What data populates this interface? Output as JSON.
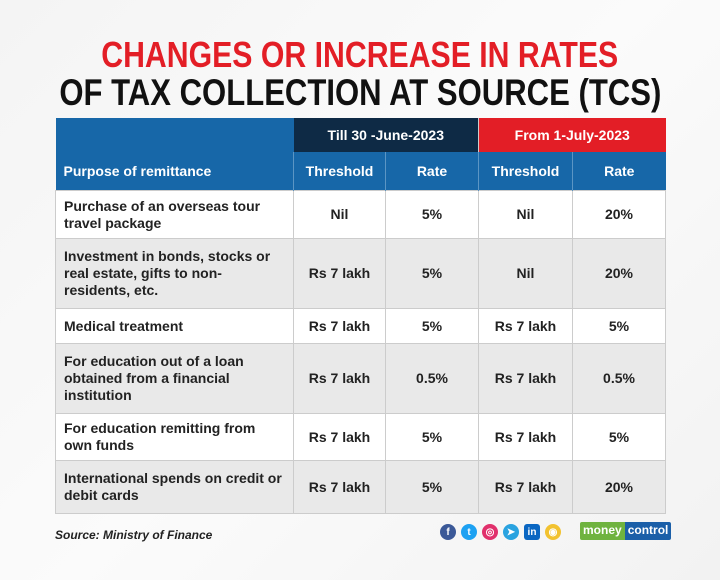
{
  "title": {
    "line1": "CHANGES OR INCREASE IN RATES",
    "line2": "OF TAX COLLECTION AT SOURCE (TCS)"
  },
  "table": {
    "period_headers": [
      "Till 30 -June-2023",
      "From 1-July-2023"
    ],
    "columns": [
      "Purpose of remittance",
      "Threshold",
      "Rate",
      "Threshold",
      "Rate"
    ],
    "rows": [
      [
        "Purchase of an overseas tour travel package",
        "Nil",
        "5%",
        "Nil",
        "20%"
      ],
      [
        "Investment in bonds, stocks or real estate, gifts to non-residents, etc.",
        "Rs 7 lakh",
        "5%",
        "Nil",
        "20%"
      ],
      [
        "Medical treatment",
        "Rs 7 lakh",
        "5%",
        "Rs 7 lakh",
        "5%"
      ],
      [
        "For education out of a loan obtained from a financial institution",
        "Rs 7 lakh",
        "0.5%",
        "Rs 7 lakh",
        "0.5%"
      ],
      [
        "For education remitting from own funds",
        "Rs 7 lakh",
        "5%",
        "Rs 7 lakh",
        "5%"
      ],
      [
        "International spends on credit or debit cards",
        "Rs 7 lakh",
        "5%",
        "Rs 7 lakh",
        "20%"
      ]
    ]
  },
  "footer": {
    "source": "Source: Ministry of Finance"
  },
  "social": [
    {
      "icon": "facebook-icon",
      "glyph": "f",
      "color": "#3b5998"
    },
    {
      "icon": "twitter-icon",
      "glyph": "t",
      "color": "#1da1f2"
    },
    {
      "icon": "instagram-icon",
      "glyph": "◎",
      "color": "#e1306c"
    },
    {
      "icon": "telegram-icon",
      "glyph": "➤",
      "color": "#2aa3e0"
    },
    {
      "icon": "linkedin-icon",
      "glyph": "in",
      "color": "#0a66c2"
    },
    {
      "icon": "snapchat-icon",
      "glyph": "◉",
      "color": "#f2c230"
    }
  ],
  "brand": {
    "part1": "money",
    "part2": "control"
  }
}
